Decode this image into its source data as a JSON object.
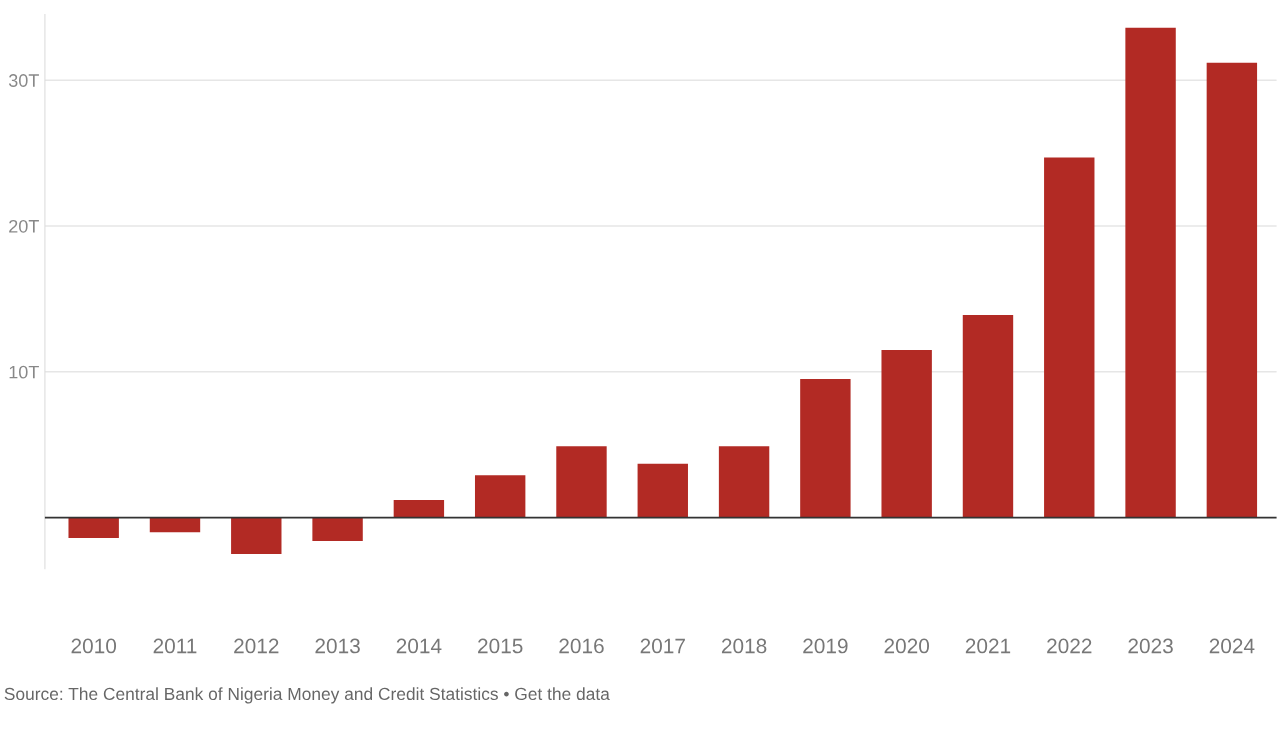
{
  "chart_data": {
    "type": "bar",
    "categories": [
      "2010",
      "2011",
      "2012",
      "2013",
      "2014",
      "2015",
      "2016",
      "2017",
      "2018",
      "2019",
      "2020",
      "2021",
      "2022",
      "2023",
      "2024"
    ],
    "values": [
      -1.4,
      -1.0,
      -2.5,
      -1.6,
      1.2,
      2.9,
      4.9,
      3.7,
      4.9,
      9.5,
      11.5,
      13.9,
      24.7,
      33.6,
      31.2
    ],
    "color": "#b22a24",
    "ylim": [
      -3.5,
      34.5
    ],
    "yticks": [
      {
        "value": 10,
        "label": "10T"
      },
      {
        "value": 20,
        "label": "20T"
      },
      {
        "value": 30,
        "label": "30T"
      }
    ],
    "grid": "y",
    "ref_lines": [
      {
        "axis": "y",
        "value": 0,
        "label": null,
        "color": "#333333"
      }
    ],
    "annotations": [
      "Source: The Central Bank of Nigeria Money and Credit Statistics • Get the data"
    ]
  }
}
